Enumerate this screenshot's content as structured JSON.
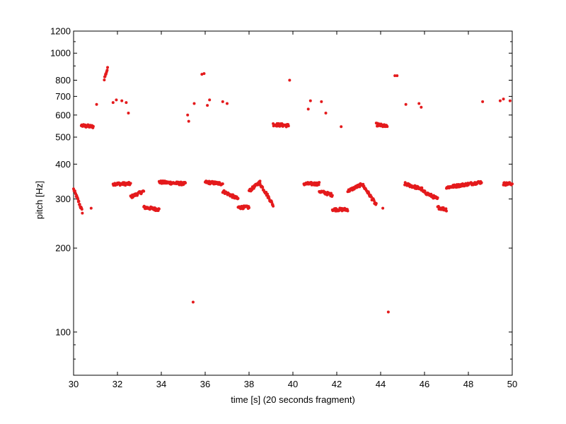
{
  "chart_data": {
    "type": "scatter",
    "xlabel": "time [s] (20 seconds fragment)",
    "ylabel": "pitch [Hz]",
    "xlim": [
      30,
      50
    ],
    "ylim": [
      70,
      1200
    ],
    "yscale": "log",
    "grid": false,
    "marker_color": "#e41a1c",
    "x_ticks": [
      30,
      32,
      34,
      36,
      38,
      40,
      42,
      44,
      46,
      48,
      50
    ],
    "y_ticks": [
      100,
      200,
      300,
      400,
      500,
      600,
      700,
      800,
      1000,
      1200
    ],
    "segments": [
      {
        "t": [
          30.0,
          30.4
        ],
        "f": [
          325,
          270
        ]
      },
      {
        "t": [
          30.35,
          30.9
        ],
        "f": [
          550,
          545
        ]
      },
      {
        "t": [
          31.4,
          31.55
        ],
        "f": [
          810,
          880
        ]
      },
      {
        "t": [
          31.8,
          32.6
        ],
        "f": [
          340,
          340
        ]
      },
      {
        "t": [
          32.6,
          33.2
        ],
        "f": [
          305,
          320
        ]
      },
      {
        "t": [
          33.2,
          33.9
        ],
        "f": [
          280,
          275
        ]
      },
      {
        "t": [
          33.9,
          35.1
        ],
        "f": [
          345,
          340
        ]
      },
      {
        "t": [
          36.0,
          36.8
        ],
        "f": [
          345,
          340
        ]
      },
      {
        "t": [
          36.8,
          37.5
        ],
        "f": [
          320,
          300
        ]
      },
      {
        "t": [
          37.5,
          38.0
        ],
        "f": [
          280,
          280
        ]
      },
      {
        "t": [
          38.0,
          38.5
        ],
        "f": [
          320,
          345
        ]
      },
      {
        "t": [
          38.5,
          39.1
        ],
        "f": [
          340,
          285
        ]
      },
      {
        "t": [
          39.1,
          39.8
        ],
        "f": [
          555,
          550
        ]
      },
      {
        "t": [
          40.5,
          41.2
        ],
        "f": [
          340,
          340
        ]
      },
      {
        "t": [
          41.2,
          41.8
        ],
        "f": [
          320,
          310
        ]
      },
      {
        "t": [
          41.8,
          42.5
        ],
        "f": [
          275,
          275
        ]
      },
      {
        "t": [
          42.5,
          43.2
        ],
        "f": [
          320,
          340
        ]
      },
      {
        "t": [
          43.2,
          43.8
        ],
        "f": [
          335,
          285
        ]
      },
      {
        "t": [
          43.8,
          44.3
        ],
        "f": [
          555,
          545
        ]
      },
      {
        "t": [
          45.1,
          45.9
        ],
        "f": [
          340,
          325
        ]
      },
      {
        "t": [
          45.9,
          46.6
        ],
        "f": [
          320,
          300
        ]
      },
      {
        "t": [
          46.6,
          47.0
        ],
        "f": [
          280,
          275
        ]
      },
      {
        "t": [
          47.0,
          48.6
        ],
        "f": [
          330,
          345
        ]
      },
      {
        "t": [
          49.6,
          50.0
        ],
        "f": [
          340,
          340
        ]
      }
    ],
    "points": [
      {
        "x": 30.8,
        "y": 278
      },
      {
        "x": 31.05,
        "y": 655
      },
      {
        "x": 31.8,
        "y": 665
      },
      {
        "x": 31.95,
        "y": 680
      },
      {
        "x": 32.2,
        "y": 675
      },
      {
        "x": 32.4,
        "y": 665
      },
      {
        "x": 32.5,
        "y": 610
      },
      {
        "x": 35.2,
        "y": 600
      },
      {
        "x": 35.25,
        "y": 570
      },
      {
        "x": 35.45,
        "y": 128
      },
      {
        "x": 35.5,
        "y": 660
      },
      {
        "x": 35.85,
        "y": 840
      },
      {
        "x": 35.95,
        "y": 845
      },
      {
        "x": 36.1,
        "y": 650
      },
      {
        "x": 36.2,
        "y": 680
      },
      {
        "x": 36.8,
        "y": 670
      },
      {
        "x": 37.0,
        "y": 660
      },
      {
        "x": 39.85,
        "y": 800
      },
      {
        "x": 40.7,
        "y": 630
      },
      {
        "x": 40.8,
        "y": 675
      },
      {
        "x": 41.3,
        "y": 670
      },
      {
        "x": 41.5,
        "y": 610
      },
      {
        "x": 42.2,
        "y": 545
      },
      {
        "x": 44.1,
        "y": 278
      },
      {
        "x": 44.35,
        "y": 118
      },
      {
        "x": 44.65,
        "y": 830
      },
      {
        "x": 44.75,
        "y": 830
      },
      {
        "x": 45.15,
        "y": 655
      },
      {
        "x": 45.75,
        "y": 660
      },
      {
        "x": 45.85,
        "y": 640
      },
      {
        "x": 48.65,
        "y": 670
      },
      {
        "x": 49.45,
        "y": 675
      },
      {
        "x": 49.6,
        "y": 685
      },
      {
        "x": 49.9,
        "y": 675
      }
    ]
  }
}
